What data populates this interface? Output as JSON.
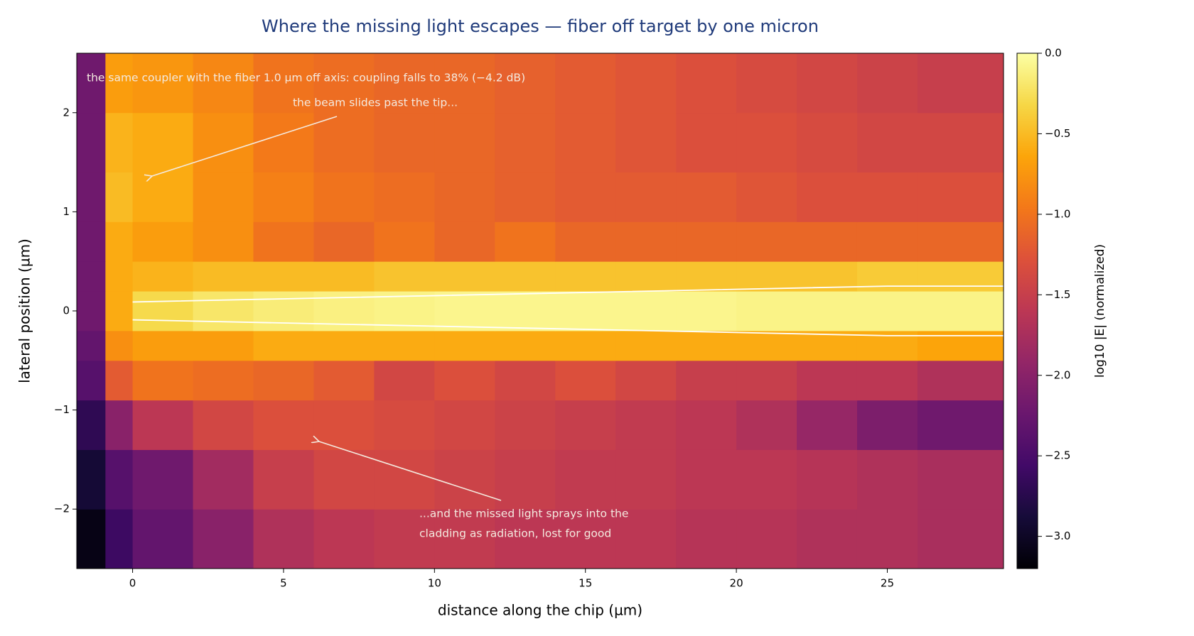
{
  "chart_data": {
    "type": "heatmap",
    "title": "Where the missing light escapes — fiber off target by one micron",
    "xlabel": "distance along the chip (µm)",
    "ylabel": "lateral position (µm)",
    "colorbar_label": "log10 |E| (normalized)",
    "colormap": "inferno",
    "xlim": [
      -1.85,
      28.85
    ],
    "ylim": [
      -2.6,
      2.6
    ],
    "xticks": [
      0,
      5,
      10,
      15,
      20,
      25
    ],
    "yticks": [
      {
        "value": -2,
        "label": "−2"
      },
      {
        "value": -1,
        "label": "−1"
      },
      0,
      1,
      2
    ],
    "clim": [
      -3.2,
      0
    ],
    "cticks": [
      {
        "value": 0,
        "label": "0.0"
      },
      {
        "value": -0.5,
        "label": "−0.5"
      },
      {
        "value": -1,
        "label": "−1.0"
      },
      {
        "value": -1.5,
        "label": "−1.5"
      },
      {
        "value": -2,
        "label": "−2.0"
      },
      {
        "value": -2.5,
        "label": "−2.5"
      },
      {
        "value": -3,
        "label": "−3.0"
      }
    ],
    "x_edges": [
      -1.85,
      -0.9,
      0,
      2,
      4,
      6,
      8,
      10,
      12,
      14,
      16,
      18,
      20,
      22,
      24,
      26,
      28.85
    ],
    "y_edges": [
      -2.6,
      -2,
      -1.4,
      -0.9,
      -0.5,
      -0.2,
      0.2,
      0.5,
      0.9,
      1.4,
      2,
      2.6
    ],
    "z": [
      [
        -3.1,
        -2.6,
        -2.3,
        -2.0,
        -1.7,
        -1.6,
        -1.55,
        -1.55,
        -1.6,
        -1.6,
        -1.6,
        -1.65,
        -1.65,
        -1.7,
        -1.7,
        -1.75
      ],
      [
        -2.9,
        -2.4,
        -2.2,
        -1.8,
        -1.5,
        -1.4,
        -1.4,
        -1.45,
        -1.5,
        -1.55,
        -1.55,
        -1.6,
        -1.6,
        -1.65,
        -1.7,
        -1.75
      ],
      [
        -2.7,
        -2.0,
        -1.6,
        -1.4,
        -1.3,
        -1.3,
        -1.35,
        -1.4,
        -1.45,
        -1.5,
        -1.55,
        -1.6,
        -1.7,
        -1.9,
        -2.1,
        -2.2
      ],
      [
        -2.4,
        -1.2,
        -1.0,
        -1.05,
        -1.1,
        -1.2,
        -1.4,
        -1.3,
        -1.4,
        -1.3,
        -1.4,
        -1.5,
        -1.5,
        -1.6,
        -1.6,
        -1.7
      ],
      [
        -2.3,
        -0.8,
        -0.7,
        -0.7,
        -0.6,
        -0.6,
        -0.6,
        -0.6,
        -0.6,
        -0.6,
        -0.6,
        -0.6,
        -0.6,
        -0.6,
        -0.6,
        -0.65
      ],
      [
        -2.2,
        -0.6,
        -0.3,
        -0.2,
        -0.15,
        -0.12,
        -0.1,
        -0.08,
        -0.08,
        -0.08,
        -0.08,
        -0.08,
        -0.1,
        -0.1,
        -0.1,
        -0.1
      ],
      [
        -2.2,
        -0.6,
        -0.55,
        -0.5,
        -0.5,
        -0.5,
        -0.45,
        -0.45,
        -0.45,
        -0.45,
        -0.45,
        -0.45,
        -0.45,
        -0.45,
        -0.4,
        -0.4
      ],
      [
        -2.2,
        -0.6,
        -0.7,
        -0.8,
        -1.0,
        -1.1,
        -1.0,
        -1.1,
        -1.0,
        -1.1,
        -1.1,
        -1.1,
        -1.1,
        -1.1,
        -1.1,
        -1.1
      ],
      [
        -2.2,
        -0.5,
        -0.6,
        -0.8,
        -0.9,
        -1.0,
        -1.05,
        -1.1,
        -1.15,
        -1.2,
        -1.2,
        -1.2,
        -1.25,
        -1.3,
        -1.3,
        -1.3
      ],
      [
        -2.2,
        -0.55,
        -0.6,
        -0.8,
        -0.95,
        -1.05,
        -1.1,
        -1.1,
        -1.15,
        -1.2,
        -1.25,
        -1.3,
        -1.3,
        -1.35,
        -1.4,
        -1.4
      ],
      [
        -2.2,
        -0.7,
        -0.75,
        -0.85,
        -1.0,
        -1.05,
        -1.1,
        -1.1,
        -1.15,
        -1.2,
        -1.25,
        -1.3,
        -1.35,
        -1.4,
        -1.45,
        -1.5
      ]
    ],
    "outline": {
      "x": [
        0,
        25,
        28.85
      ],
      "upper": [
        0.09,
        0.25,
        0.25
      ],
      "lower": [
        -0.09,
        -0.25,
        -0.25
      ],
      "color": "#ffffff"
    },
    "annotations": [
      {
        "text": "the same coupler with the fiber 1.0 µm off axis: coupling falls to 38% (−4.2 dB)"
      },
      {
        "text": "the beam slides past the tip..."
      },
      {
        "lines": [
          "...and the missed light sprays into the",
          "cladding as radiation, lost for good"
        ]
      }
    ]
  }
}
